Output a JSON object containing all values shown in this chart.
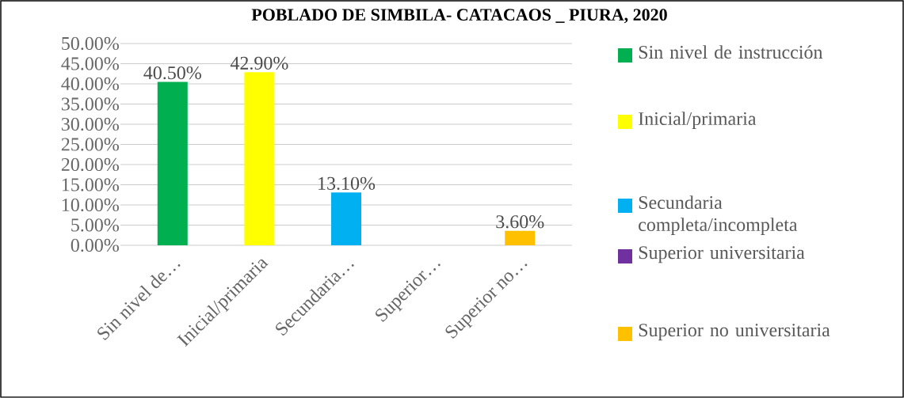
{
  "chart_data": {
    "type": "bar",
    "title": "POBLADO DE SIMBILA- CATACAOS _ PIURA, 2020",
    "categories": [
      "Sin nivel de…",
      "Inicial/primaria",
      "Secundaria…",
      "Superior…",
      "Superior no…"
    ],
    "series": [
      {
        "name": "Sin nivel de instrucción",
        "color": "#00b050",
        "values": [
          40.5,
          null,
          null,
          null,
          null
        ],
        "value_labels": [
          "40.50%",
          null,
          null,
          null,
          null
        ]
      },
      {
        "name": "Inicial/primaria",
        "color": "#ffff00",
        "values": [
          null,
          42.9,
          null,
          null,
          null
        ],
        "value_labels": [
          null,
          "42.90%",
          null,
          null,
          null
        ]
      },
      {
        "name": "Secundaria completa/incompleta",
        "color": "#00b0f0",
        "values": [
          null,
          null,
          13.1,
          null,
          null
        ],
        "value_labels": [
          null,
          null,
          "13.10%",
          null,
          null
        ]
      },
      {
        "name": "Superior universitaria",
        "color": "#7030a0",
        "values": [
          null,
          null,
          null,
          0,
          null
        ],
        "value_labels": [
          null,
          null,
          null,
          null,
          null
        ]
      },
      {
        "name": "Superior no universitaria",
        "color": "#ffc000",
        "values": [
          null,
          null,
          null,
          null,
          3.6
        ],
        "value_labels": [
          null,
          null,
          null,
          null,
          "3.60%"
        ]
      }
    ],
    "ylim": [
      0,
      50
    ],
    "yticks": [
      {
        "value": 0,
        "label": "0.00%"
      },
      {
        "value": 5,
        "label": "5.00%"
      },
      {
        "value": 10,
        "label": "10.00%"
      },
      {
        "value": 15,
        "label": "15.00%"
      },
      {
        "value": 20,
        "label": "20.00%"
      },
      {
        "value": 25,
        "label": "25.00%"
      },
      {
        "value": 30,
        "label": "30.00%"
      },
      {
        "value": 35,
        "label": "35.00%"
      },
      {
        "value": 40,
        "label": "40.00%"
      },
      {
        "value": 45,
        "label": "45.00%"
      },
      {
        "value": 50,
        "label": "50.00%"
      }
    ],
    "grid": "y",
    "legend": "right"
  }
}
